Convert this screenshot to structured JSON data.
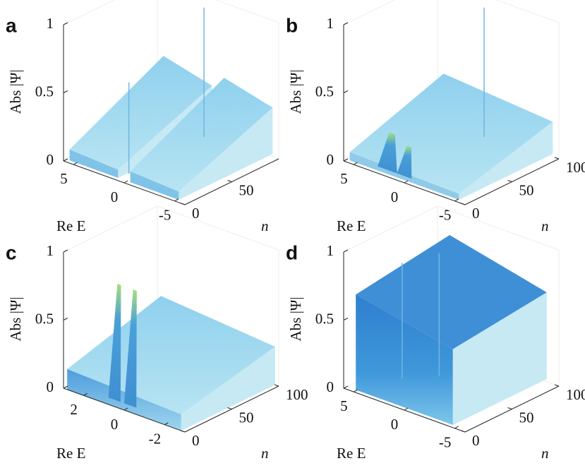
{
  "chart_data": [
    {
      "type": "surface",
      "panel": "a",
      "zlabel": "Abs |Ψ|",
      "xlabel": "Re E",
      "ylabel": "n",
      "xlim": [
        6,
        -6
      ],
      "xticks": [
        5,
        0,
        -5
      ],
      "ylim": [
        0,
        100
      ],
      "yticks": [
        0,
        50
      ],
      "zlim": [
        0,
        1
      ],
      "zticks": [
        0,
        0.5,
        1
      ],
      "color": "#7cc4e8"
    },
    {
      "type": "surface",
      "panel": "b",
      "zlabel": "Abs |Ψ|",
      "xlabel": "Re E",
      "ylabel": "n",
      "xlim": [
        6,
        -6
      ],
      "xticks": [
        5,
        0,
        -5
      ],
      "ylim": [
        0,
        100
      ],
      "yticks": [
        0,
        50,
        100
      ],
      "zlim": [
        0,
        1
      ],
      "zticks": [
        0,
        0.5,
        1
      ],
      "color": "#8ccfe8"
    },
    {
      "type": "surface",
      "panel": "c",
      "zlabel": "Abs |Ψ|",
      "xlabel": "Re E",
      "ylabel": "n",
      "xlim": [
        3,
        -3
      ],
      "xticks": [
        2,
        0,
        -2
      ],
      "ylim": [
        0,
        100
      ],
      "yticks": [
        0,
        50,
        100
      ],
      "zlim": [
        0,
        1
      ],
      "zticks": [
        0,
        0.5,
        1
      ],
      "color": "#5aa8dc"
    },
    {
      "type": "surface",
      "panel": "d",
      "zlabel": "Abs |Ψ|",
      "xlabel": "Re E",
      "ylabel": "n",
      "xlim": [
        6,
        -6
      ],
      "xticks": [
        5,
        0,
        -5
      ],
      "ylim": [
        0,
        100
      ],
      "yticks": [
        0,
        50,
        100
      ],
      "zlim": [
        0,
        1
      ],
      "zticks": [
        0,
        0.5,
        1
      ],
      "color": "#3d8fd6"
    }
  ]
}
